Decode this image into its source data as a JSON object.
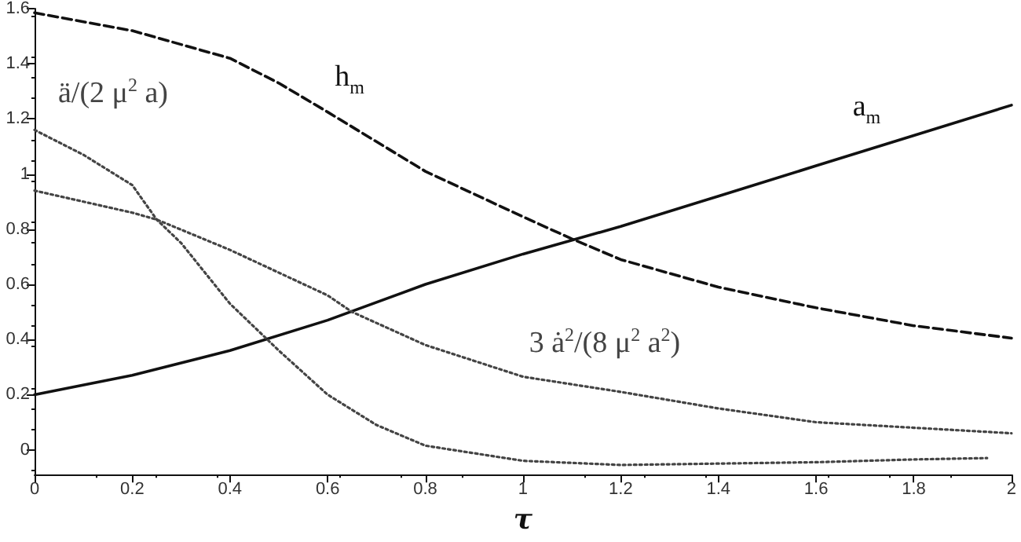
{
  "chart_data": {
    "type": "line",
    "xlabel": "τ",
    "xlim": [
      0,
      2
    ],
    "xticks": [
      0,
      0.2,
      0.4,
      0.6,
      0.8,
      1,
      1.2,
      1.4,
      1.6,
      1.8,
      2
    ],
    "ylim": [
      -0.09,
      1.6
    ],
    "yticks": [
      0,
      0.2,
      0.4,
      0.6,
      0.8,
      1,
      1.2,
      1.4,
      1.6
    ],
    "grid": false,
    "marker": "none",
    "series": [
      {
        "name": "h$_{m}$",
        "color": "#111111",
        "line_style": "dashed",
        "x": [
          0,
          0.2,
          0.4,
          0.5,
          0.6,
          0.8,
          1,
          1.1,
          1.2,
          1.4,
          1.6,
          1.8,
          2
        ],
        "values": [
          1.585,
          1.52,
          1.42,
          1.33,
          1.225,
          1.01,
          0.845,
          0.765,
          0.69,
          0.59,
          0.515,
          0.45,
          0.405
        ]
      },
      {
        "name": "a$_{m}$",
        "color": "#111111",
        "line_style": "solid",
        "x": [
          0,
          0.2,
          0.4,
          0.6,
          0.8,
          1,
          1.2,
          1.4,
          1.6,
          1.8,
          2
        ],
        "values": [
          0.2,
          0.27,
          0.36,
          0.47,
          0.6,
          0.71,
          0.81,
          0.92,
          1.03,
          1.14,
          1.25
        ]
      },
      {
        "name": "ä/(2 μ$^{2}$ a)",
        "color": "#444444",
        "line_style": "dotted",
        "x": [
          0,
          0.1,
          0.2,
          0.25,
          0.3,
          0.4,
          0.5,
          0.6,
          0.7,
          0.8,
          1,
          1.2,
          1.4,
          1.6,
          1.8,
          1.95
        ],
        "values": [
          1.16,
          1.07,
          0.96,
          0.835,
          0.75,
          0.53,
          0.36,
          0.2,
          0.09,
          0.015,
          -0.04,
          -0.055,
          -0.05,
          -0.045,
          -0.035,
          -0.03
        ]
      },
      {
        "name": "3 ȧ$^{2}$/(8 μ$^{2}$ a$^{2}$)",
        "color": "#444444",
        "line_style": "dotted",
        "x": [
          0,
          0.2,
          0.25,
          0.4,
          0.6,
          0.65,
          0.8,
          1,
          1.2,
          1.4,
          1.6,
          1.8,
          2
        ],
        "values": [
          0.94,
          0.86,
          0.835,
          0.725,
          0.56,
          0.5,
          0.38,
          0.265,
          0.21,
          0.15,
          0.1,
          0.08,
          0.06
        ]
      }
    ]
  }
}
